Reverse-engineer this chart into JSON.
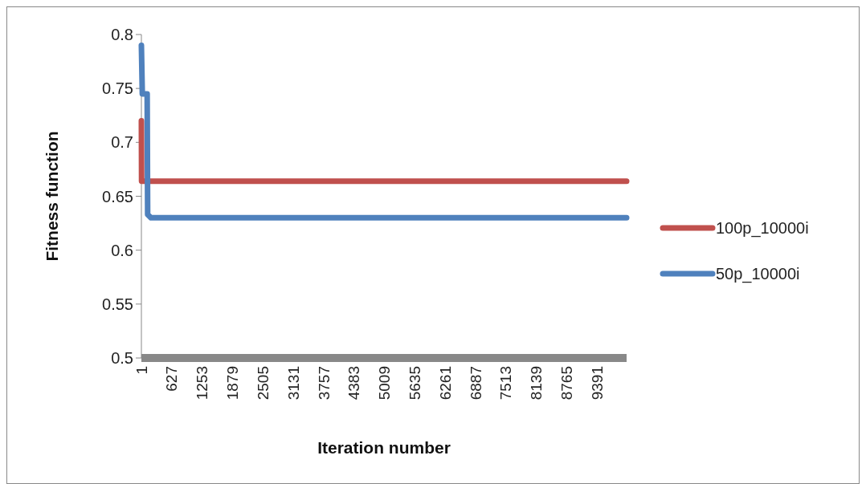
{
  "chart_data": {
    "type": "line",
    "xlabel": "Iteration number",
    "ylabel": "Fitness function",
    "xlim": [
      1,
      10000
    ],
    "xticks": [
      1,
      627,
      1253,
      1879,
      2505,
      3131,
      3757,
      4383,
      5009,
      5635,
      6261,
      6887,
      7513,
      8139,
      8765,
      9391
    ],
    "ylim": [
      0.5,
      0.8
    ],
    "yticks": [
      0.5,
      0.55,
      0.6,
      0.65,
      0.7,
      0.75,
      0.8
    ],
    "grid": false,
    "legend": "right",
    "series": [
      {
        "name": "100p_10000i",
        "color": "#c0504d",
        "x": [
          1,
          5,
          10000
        ],
        "values": [
          0.72,
          0.664,
          0.664
        ]
      },
      {
        "name": "50p_10000i",
        "color": "#4f81bd",
        "x": [
          1,
          20,
          120,
          130,
          200,
          10000
        ],
        "values": [
          0.79,
          0.745,
          0.745,
          0.633,
          0.63,
          0.63
        ]
      }
    ]
  }
}
